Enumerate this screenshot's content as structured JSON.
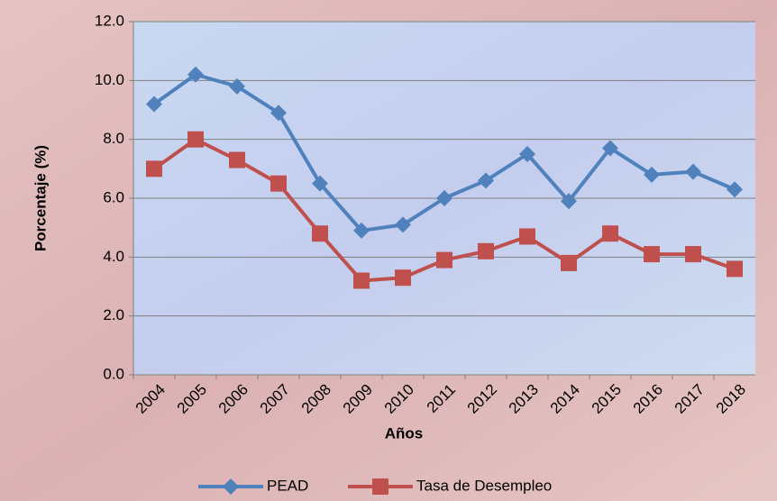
{
  "chart_data": {
    "type": "line",
    "x_label": "Años",
    "y_label": "Porcentaje (%)",
    "categories": [
      "2004",
      "2005",
      "2006",
      "2007",
      "2008",
      "2009",
      "2010",
      "2011",
      "2012",
      "2013",
      "2014",
      "2015",
      "2016",
      "2017",
      "2018"
    ],
    "series": [
      {
        "name": "PEAD",
        "color": "#4f81bd",
        "marker": "diamond",
        "values": [
          9.2,
          10.2,
          9.8,
          8.9,
          6.5,
          4.9,
          5.1,
          6.0,
          6.6,
          7.5,
          5.9,
          7.7,
          6.8,
          6.9,
          6.3
        ]
      },
      {
        "name": "Tasa de Desempleo",
        "color": "#c0504d",
        "marker": "square",
        "values": [
          7.0,
          8.0,
          7.3,
          6.5,
          4.8,
          3.2,
          3.3,
          3.9,
          4.2,
          4.7,
          3.8,
          4.8,
          4.1,
          4.1,
          3.6
        ]
      }
    ],
    "ylim": [
      0,
      12
    ],
    "yticks": [
      {
        "value": 0,
        "label": "0.0"
      },
      {
        "value": 2,
        "label": "2.0"
      },
      {
        "value": 4,
        "label": "4.0"
      },
      {
        "value": 6,
        "label": "6.0"
      },
      {
        "value": 8,
        "label": "8.0"
      },
      {
        "value": 10,
        "label": "10.0"
      },
      {
        "value": 12,
        "label": "12.0"
      }
    ],
    "grid": true,
    "legend": "bottom"
  }
}
